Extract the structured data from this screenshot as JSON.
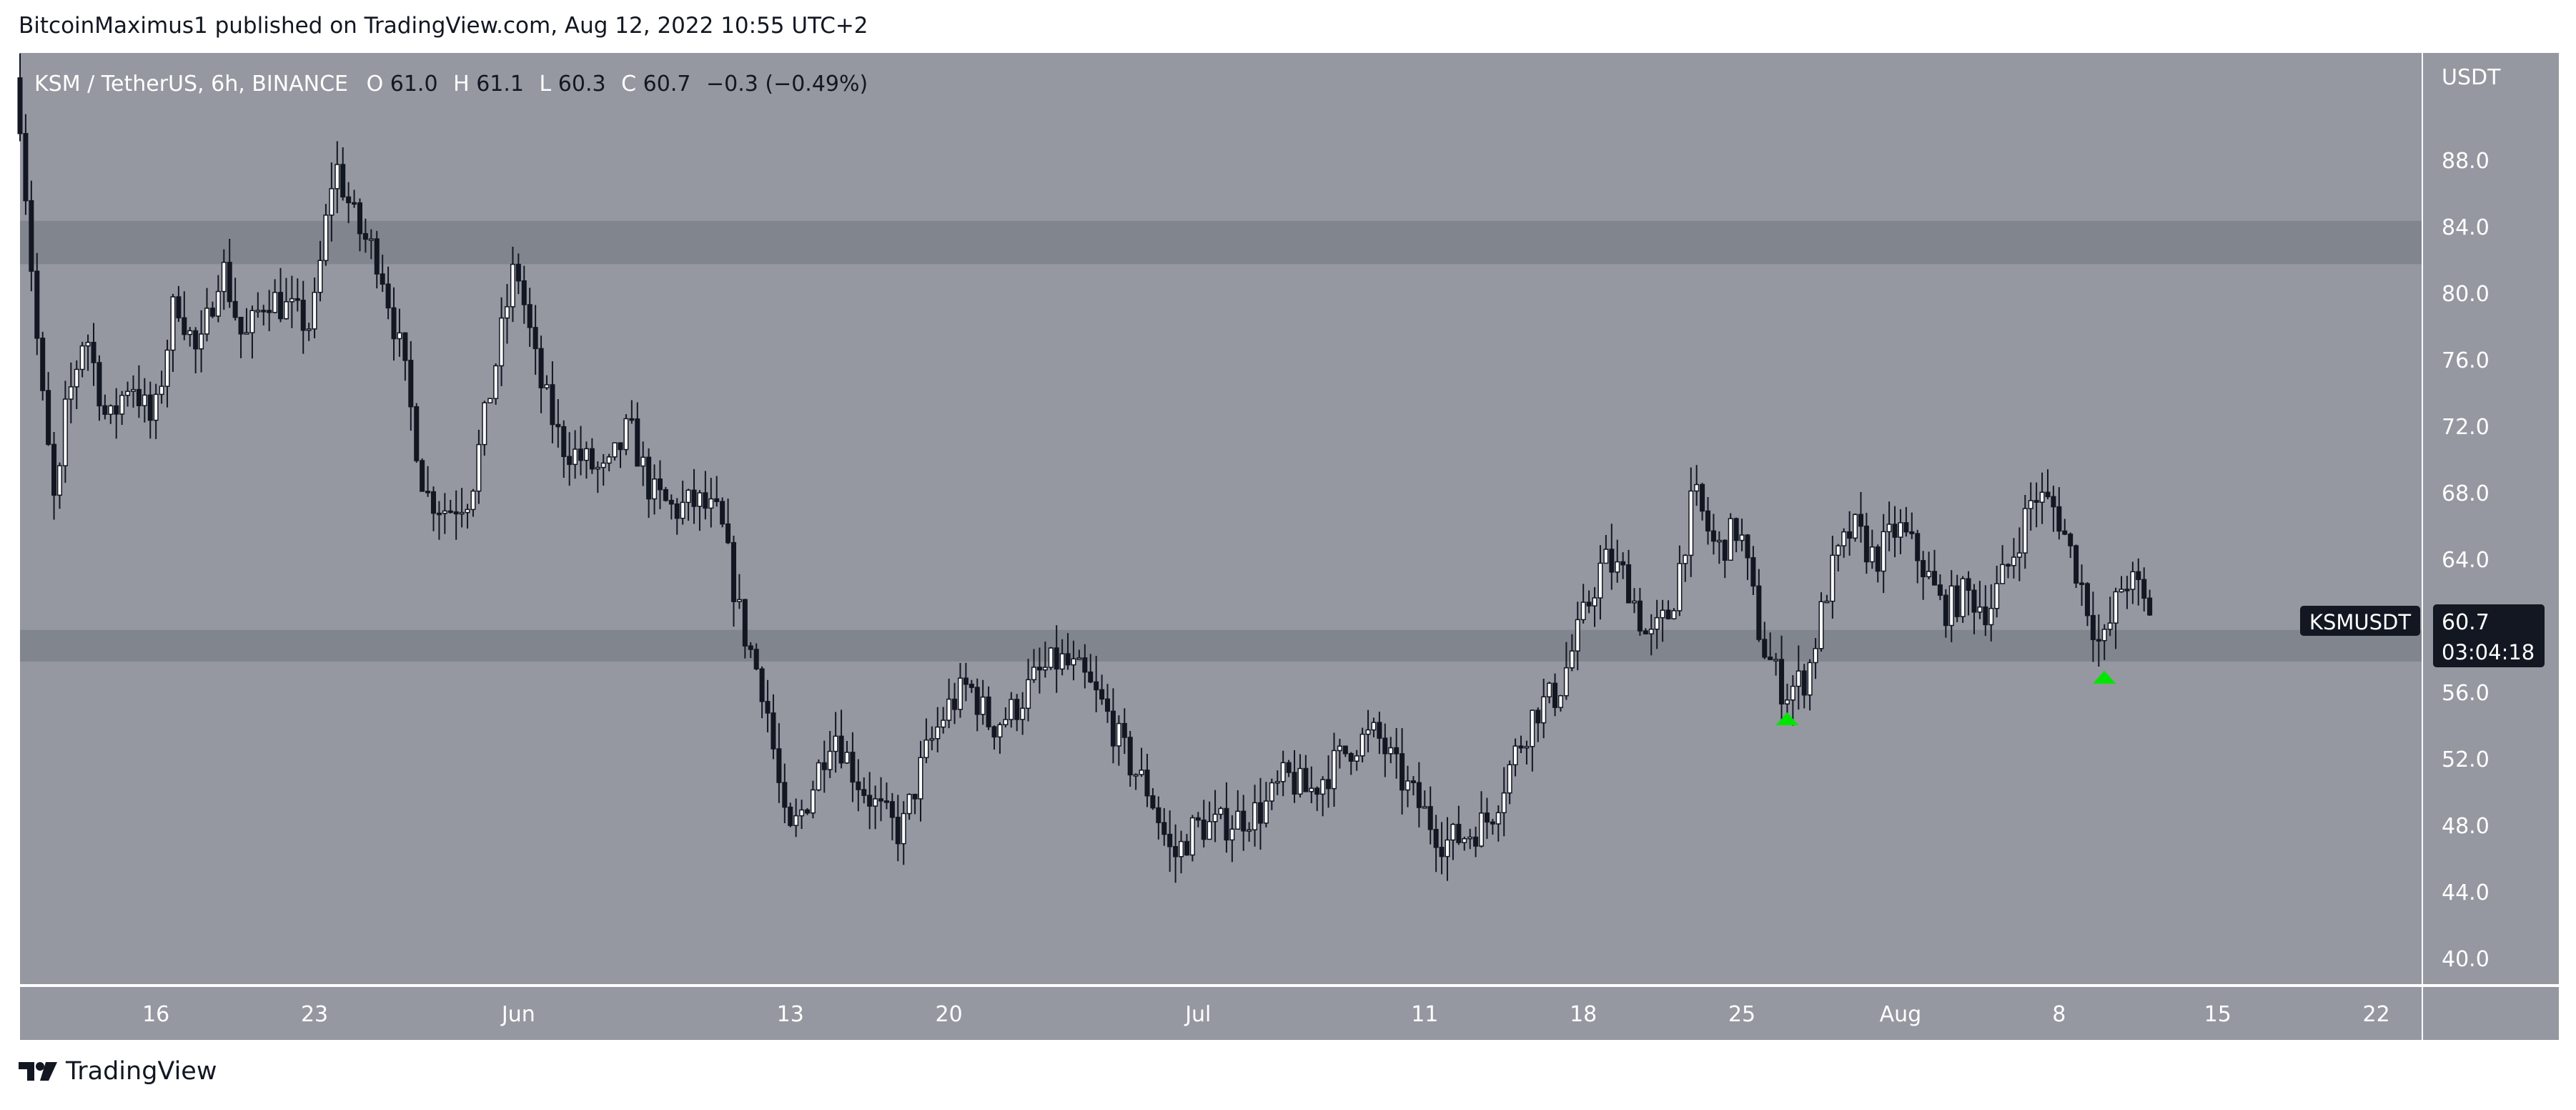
{
  "header": {
    "published": "BitcoinMaximus1 published on TradingView.com, Aug 12, 2022 10:55 UTC+2"
  },
  "legend": {
    "symbol": "KSM / TetherUS, 6h, BINANCE",
    "o_label": "O",
    "o_value": "61.0",
    "h_label": "H",
    "h_value": "61.1",
    "l_label": "L",
    "l_value": "60.3",
    "c_label": "C",
    "c_value": "60.7",
    "change": "−0.3 (−0.49%)"
  },
  "price_axis": {
    "currency": "USDT"
  },
  "price_tag": {
    "symbol": "KSMUSDT",
    "price": "60.7",
    "countdown": "03:04:18"
  },
  "footer": {
    "brand": "TradingView"
  },
  "colors": {
    "background": "#9598a1",
    "zone": "#7e818a",
    "marker": "#00e600",
    "candle_up": "#ffffff",
    "candle_down": "#131722",
    "axis_text": "#ffffff"
  },
  "chart_data": {
    "type": "candlestick",
    "title": "KSM / TetherUS, 6h, BINANCE",
    "x_range": [
      "2022-05-10",
      "2022-08-24"
    ],
    "ylim": [
      38.5,
      94.5
    ],
    "y_ticks": [
      40.0,
      44.0,
      48.0,
      52.0,
      56.0,
      60.0,
      64.0,
      68.0,
      72.0,
      76.0,
      80.0,
      84.0,
      88.0
    ],
    "x_ticks": [
      {
        "date": "2022-05-16",
        "label": "16"
      },
      {
        "date": "2022-05-23",
        "label": "23"
      },
      {
        "date": "2022-06-01",
        "label": "Jun"
      },
      {
        "date": "2022-06-13",
        "label": "13"
      },
      {
        "date": "2022-06-20",
        "label": "20"
      },
      {
        "date": "2022-07-01",
        "label": "Jul"
      },
      {
        "date": "2022-07-11",
        "label": "11"
      },
      {
        "date": "2022-07-18",
        "label": "18"
      },
      {
        "date": "2022-07-25",
        "label": "25"
      },
      {
        "date": "2022-08-01",
        "label": "Aug"
      },
      {
        "date": "2022-08-08",
        "label": "8"
      },
      {
        "date": "2022-08-15",
        "label": "15"
      },
      {
        "date": "2022-08-22",
        "label": "22"
      }
    ],
    "zones": [
      {
        "low": 81.8,
        "high": 84.4
      },
      {
        "low": 57.9,
        "high": 59.8
      }
    ],
    "markers": [
      {
        "date": "2022-07-27",
        "price": 54.5
      },
      {
        "date": "2022-08-10",
        "price": 57.0
      }
    ],
    "price_path": [
      [
        "2022-05-10",
        93.0
      ],
      [
        "2022-05-11",
        75.0
      ],
      [
        "2022-05-11 18:00",
        66.0
      ],
      [
        "2022-05-12",
        72.0
      ],
      [
        "2022-05-13",
        78.0
      ],
      [
        "2022-05-14",
        72.0
      ],
      [
        "2022-05-15",
        75.0
      ],
      [
        "2022-05-16",
        72.0
      ],
      [
        "2022-05-17",
        80.0
      ],
      [
        "2022-05-18",
        76.0
      ],
      [
        "2022-05-19",
        82.0
      ],
      [
        "2022-05-20",
        77.0
      ],
      [
        "2022-05-21",
        80.0
      ],
      [
        "2022-05-22",
        79.0
      ],
      [
        "2022-05-23",
        78.0
      ],
      [
        "2022-05-24",
        88.0
      ],
      [
        "2022-05-25",
        84.0
      ],
      [
        "2022-05-26",
        82.0
      ],
      [
        "2022-05-27",
        76.0
      ],
      [
        "2022-05-28",
        68.0
      ],
      [
        "2022-05-29",
        67.0
      ],
      [
        "2022-05-30",
        68.0
      ],
      [
        "2022-05-31",
        75.0
      ],
      [
        "2022-06-01",
        82.0
      ],
      [
        "2022-06-02",
        75.0
      ],
      [
        "2022-06-03",
        71.0
      ],
      [
        "2022-06-04",
        70.0
      ],
      [
        "2022-06-05",
        69.0
      ],
      [
        "2022-06-06",
        72.0
      ],
      [
        "2022-06-07",
        68.0
      ],
      [
        "2022-06-08",
        67.0
      ],
      [
        "2022-06-09",
        67.5
      ],
      [
        "2022-06-10",
        66.5
      ],
      [
        "2022-06-11",
        60.0
      ],
      [
        "2022-06-12",
        56.0
      ],
      [
        "2022-06-13",
        47.0
      ],
      [
        "2022-06-14",
        50.0
      ],
      [
        "2022-06-15",
        54.0
      ],
      [
        "2022-06-16",
        51.0
      ],
      [
        "2022-06-17",
        49.0
      ],
      [
        "2022-06-18",
        47.5
      ],
      [
        "2022-06-19",
        52.0
      ],
      [
        "2022-06-20",
        55.0
      ],
      [
        "2022-06-21",
        56.5
      ],
      [
        "2022-06-22",
        54.0
      ],
      [
        "2022-06-23",
        55.0
      ],
      [
        "2022-06-24",
        57.0
      ],
      [
        "2022-06-25",
        58.0
      ],
      [
        "2022-06-26",
        57.0
      ],
      [
        "2022-06-27",
        55.0
      ],
      [
        "2022-06-28",
        52.0
      ],
      [
        "2022-06-29",
        50.0
      ],
      [
        "2022-06-30",
        46.0
      ],
      [
        "2022-07-01",
        48.0
      ],
      [
        "2022-07-02",
        48.0
      ],
      [
        "2022-07-03",
        48.5
      ],
      [
        "2022-07-04",
        49.0
      ],
      [
        "2022-07-05",
        51.0
      ],
      [
        "2022-07-06",
        50.0
      ],
      [
        "2022-07-07",
        51.5
      ],
      [
        "2022-07-08",
        53.0
      ],
      [
        "2022-07-09",
        53.5
      ],
      [
        "2022-07-10",
        51.0
      ],
      [
        "2022-07-11",
        49.0
      ],
      [
        "2022-07-12",
        47.0
      ],
      [
        "2022-07-13",
        47.5
      ],
      [
        "2022-07-14",
        48.5
      ],
      [
        "2022-07-15",
        52.0
      ],
      [
        "2022-07-16",
        55.0
      ],
      [
        "2022-07-17",
        56.0
      ],
      [
        "2022-07-18",
        60.0
      ],
      [
        "2022-07-19",
        64.0
      ],
      [
        "2022-07-20",
        63.0
      ],
      [
        "2022-07-21",
        59.0
      ],
      [
        "2022-07-22",
        61.0
      ],
      [
        "2022-07-23",
        68.0
      ],
      [
        "2022-07-24",
        64.5
      ],
      [
        "2022-07-25",
        66.0
      ],
      [
        "2022-07-26",
        59.0
      ],
      [
        "2022-07-27",
        56.0
      ],
      [
        "2022-07-28",
        57.0
      ],
      [
        "2022-07-29",
        63.0
      ],
      [
        "2022-07-30",
        66.0
      ],
      [
        "2022-07-31",
        64.0
      ],
      [
        "2022-08-01",
        66.0
      ],
      [
        "2022-08-02",
        64.0
      ],
      [
        "2022-08-03",
        61.0
      ],
      [
        "2022-08-04",
        62.0
      ],
      [
        "2022-08-05",
        61.0
      ],
      [
        "2022-08-06",
        64.0
      ],
      [
        "2022-08-07",
        68.0
      ],
      [
        "2022-08-08",
        67.0
      ],
      [
        "2022-08-09",
        63.0
      ],
      [
        "2022-08-10",
        58.5
      ],
      [
        "2022-08-11",
        63.0
      ],
      [
        "2022-08-11 18:00",
        62.0
      ],
      [
        "2022-08-12",
        60.7
      ]
    ]
  }
}
